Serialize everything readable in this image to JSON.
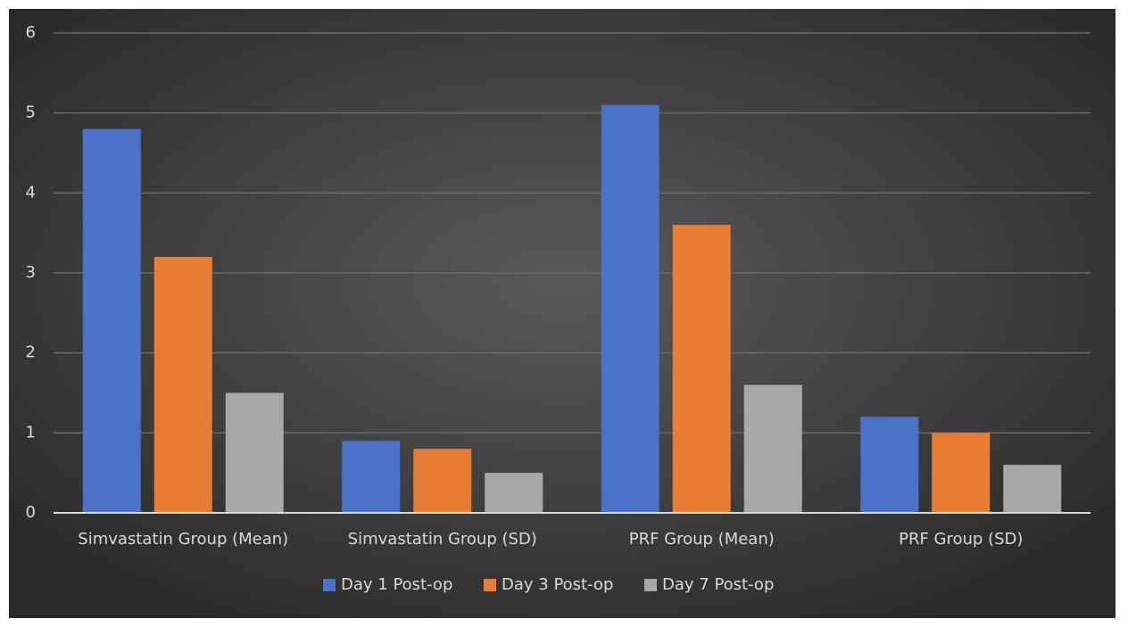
{
  "chart_data": {
    "type": "bar",
    "categories": [
      "Simvastatin Group (Mean)",
      "Simvastatin Group (SD)",
      "PRF Group (Mean)",
      "PRF Group (SD)"
    ],
    "series": [
      {
        "name": "Day 1 Post-op",
        "color": "#4a72c8",
        "values": [
          4.8,
          0.9,
          5.1,
          1.2
        ]
      },
      {
        "name": "Day 3 Post-op",
        "color": "#ea7d36",
        "values": [
          3.2,
          0.8,
          3.6,
          1.0
        ]
      },
      {
        "name": "Day 7 Post-op",
        "color": "#a8a8a8",
        "values": [
          1.5,
          0.5,
          1.6,
          0.6
        ]
      }
    ],
    "ylim": [
      0,
      6
    ],
    "yticks": [
      0,
      1,
      2,
      3,
      4,
      5,
      6
    ],
    "grid": true,
    "legend": "bottom"
  }
}
